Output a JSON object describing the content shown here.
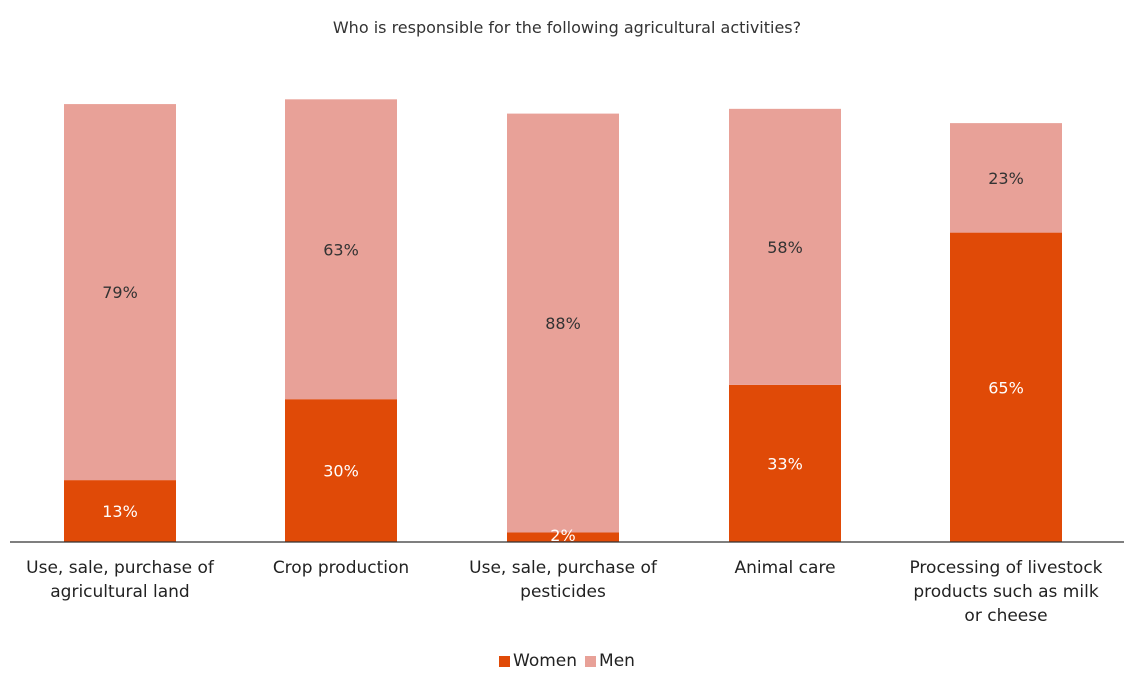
{
  "chart_data": {
    "type": "bar",
    "stacked": true,
    "title": "Who is responsible for the following agricultural activities?",
    "categories": [
      "Use, sale, purchase of agricultural land",
      "Crop production",
      "Use, sale, purchase of pesticides",
      "Animal care",
      "Processing of livestock products such as milk or cheese"
    ],
    "series": [
      {
        "name": "Women",
        "color": "#e04a07",
        "values": [
          13,
          30,
          2,
          33,
          65
        ],
        "labels": [
          "13%",
          "30%",
          "2%",
          "33%",
          "65%"
        ]
      },
      {
        "name": "Men",
        "color": "#e8a198",
        "values": [
          79,
          63,
          88,
          58,
          23
        ],
        "labels": [
          "79%",
          "63%",
          "88%",
          "58%",
          "23%"
        ]
      }
    ],
    "ylim": [
      0,
      100
    ],
    "xlabel": "",
    "ylabel": "",
    "grid": false,
    "legend_position": "bottom"
  }
}
